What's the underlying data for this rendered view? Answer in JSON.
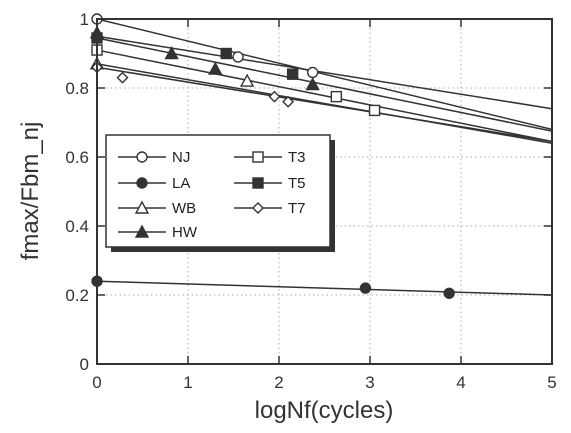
{
  "chart_data": {
    "type": "scatter",
    "title": "",
    "xlabel": "logNf(cycles)",
    "ylabel": "fmax/Fbm_nj",
    "xlim": [
      0,
      5
    ],
    "ylim": [
      0,
      1
    ],
    "xticks": [
      0,
      1,
      2,
      3,
      4,
      5
    ],
    "xtick_labels": [
      "0",
      "1",
      "2",
      "3",
      "4",
      "5"
    ],
    "yticks": [
      0,
      0.2,
      0.4,
      0.6,
      0.8,
      1
    ],
    "ytick_labels": [
      "0",
      "0.2",
      "0.4",
      "0.6",
      "0.8",
      "1"
    ],
    "grid": true,
    "legend_position": "center-left",
    "legend_columns": 2,
    "series": [
      {
        "name": "NJ",
        "marker": "circle-open",
        "points": [
          {
            "x": 0,
            "y": 1.0
          },
          {
            "x": 1.55,
            "y": 0.89
          },
          {
            "x": 2.37,
            "y": 0.845
          }
        ],
        "fit": [
          {
            "x": 0,
            "y": 1.0
          },
          {
            "x": 5,
            "y": 0.68
          }
        ]
      },
      {
        "name": "LA",
        "marker": "circle-filled",
        "points": [
          {
            "x": 0,
            "y": 0.24
          },
          {
            "x": 2.95,
            "y": 0.22
          },
          {
            "x": 3.87,
            "y": 0.205
          }
        ],
        "fit": [
          {
            "x": 0,
            "y": 0.24
          },
          {
            "x": 5,
            "y": 0.2
          }
        ]
      },
      {
        "name": "WB",
        "marker": "triangle-open",
        "points": [
          {
            "x": 0,
            "y": 0.87
          },
          {
            "x": 1.65,
            "y": 0.82
          }
        ],
        "fit": [
          {
            "x": 0,
            "y": 0.87
          },
          {
            "x": 5,
            "y": 0.64
          }
        ]
      },
      {
        "name": "HW",
        "marker": "triangle-filled",
        "points": [
          {
            "x": 0,
            "y": 0.96
          },
          {
            "x": 0.82,
            "y": 0.9
          },
          {
            "x": 1.3,
            "y": 0.855
          },
          {
            "x": 2.37,
            "y": 0.81
          }
        ],
        "fit": [
          {
            "x": 0,
            "y": 0.95
          },
          {
            "x": 5,
            "y": 0.74
          }
        ]
      },
      {
        "name": "T3",
        "marker": "square-open",
        "points": [
          {
            "x": 0,
            "y": 0.91
          },
          {
            "x": 2.63,
            "y": 0.775
          },
          {
            "x": 3.05,
            "y": 0.735
          }
        ],
        "fit": [
          {
            "x": 0,
            "y": 0.91
          },
          {
            "x": 5,
            "y": 0.645
          }
        ]
      },
      {
        "name": "T5",
        "marker": "square-filled",
        "points": [
          {
            "x": 0,
            "y": 0.945
          },
          {
            "x": 1.42,
            "y": 0.9
          },
          {
            "x": 2.15,
            "y": 0.84
          }
        ],
        "fit": [
          {
            "x": 0,
            "y": 0.945
          },
          {
            "x": 5,
            "y": 0.675
          }
        ]
      },
      {
        "name": "T7",
        "marker": "diamond-open",
        "points": [
          {
            "x": 0,
            "y": 0.86
          },
          {
            "x": 0.28,
            "y": 0.83
          },
          {
            "x": 1.95,
            "y": 0.775
          },
          {
            "x": 2.1,
            "y": 0.76
          }
        ],
        "fit": [
          {
            "x": 0,
            "y": 0.86
          },
          {
            "x": 5,
            "y": 0.645
          }
        ]
      }
    ]
  },
  "colors": {
    "background": "#ffffff",
    "ink": "#333333",
    "grid": "#aaaaaa"
  }
}
